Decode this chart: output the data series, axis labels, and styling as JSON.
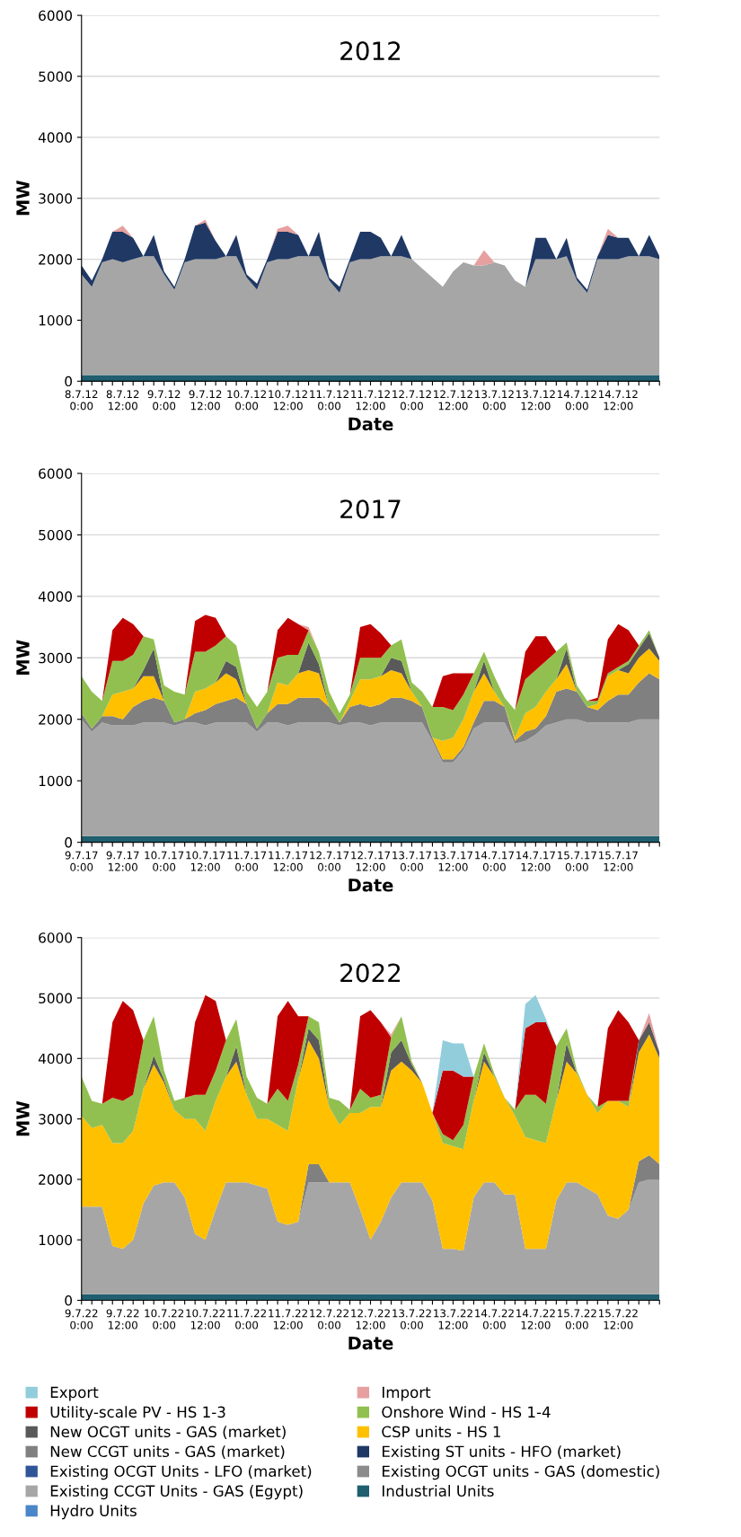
{
  "chart_data": [
    {
      "type": "area",
      "stacked": true,
      "title": "2012",
      "xlabel": "Date",
      "ylabel": "MW",
      "ylim": [
        0,
        6000
      ],
      "yticks": [
        0,
        1000,
        2000,
        3000,
        4000,
        5000,
        6000
      ],
      "grid": "y",
      "legend": false,
      "categories": [
        "8.7.12\n0:00",
        null,
        null,
        null,
        "8.7.12\n12:00",
        null,
        null,
        null,
        "9.7.12\n0:00",
        null,
        null,
        null,
        "9.7.12\n12:00",
        null,
        null,
        null,
        "10.7.12\n0:00",
        null,
        null,
        null,
        "10.7.12\n12:00",
        null,
        null,
        null,
        "11.7.12\n0:00",
        null,
        null,
        null,
        "11.7.12\n12:00",
        null,
        null,
        null,
        "12.7.12\n0:00",
        null,
        null,
        null,
        "12.7.12\n12:00",
        null,
        null,
        null,
        "13.7.12\n0:00",
        null,
        null,
        null,
        "13.7.12\n12:00",
        null,
        null,
        null,
        "14.7.12\n0:00",
        null,
        null,
        null,
        "14.7.12\n12:00",
        null,
        null,
        null,
        null
      ],
      "series": [
        {
          "color": "#1f5f6f",
          "values": [
            100,
            100,
            100,
            100,
            100,
            100,
            100,
            100,
            100,
            100,
            100,
            100,
            100,
            100,
            100,
            100,
            100,
            100,
            100,
            100,
            100,
            100,
            100,
            100,
            100,
            100,
            100,
            100,
            100,
            100,
            100,
            100,
            100,
            100,
            100,
            100,
            100,
            100,
            100,
            100,
            100,
            100,
            100,
            100,
            100,
            100,
            100,
            100,
            100,
            100,
            100,
            100,
            100,
            100,
            100,
            100,
            100
          ]
        },
        {
          "color": "#a6a6a6",
          "values": [
            1650,
            1450,
            1850,
            1900,
            1850,
            1900,
            1950,
            1950,
            1650,
            1400,
            1850,
            1900,
            1900,
            1900,
            1950,
            1950,
            1600,
            1400,
            1850,
            1900,
            1900,
            1950,
            1950,
            1950,
            1550,
            1350,
            1850,
            1900,
            1900,
            1950,
            1950,
            1950,
            1900,
            1750,
            1600,
            1450,
            1700,
            1850,
            1800,
            1800,
            1850,
            1800,
            1550,
            1450,
            1900,
            1900,
            1900,
            1950,
            1550,
            1350,
            1900,
            1900,
            1900,
            1950,
            1950,
            1950,
            1900
          ]
        },
        {
          "color": "#1f3864",
          "values": [
            150,
            100,
            50,
            450,
            500,
            350,
            0,
            350,
            50,
            50,
            50,
            550,
            600,
            300,
            0,
            350,
            50,
            100,
            50,
            450,
            450,
            350,
            0,
            400,
            50,
            100,
            50,
            450,
            450,
            300,
            0,
            350,
            0,
            null,
            null,
            null,
            null,
            null,
            null,
            null,
            null,
            null,
            null,
            0,
            350,
            350,
            0,
            300,
            50,
            50,
            50,
            400,
            350,
            300,
            0,
            350,
            50
          ]
        },
        {
          "color": "#e6a0a0",
          "values": [
            null,
            null,
            null,
            0,
            100,
            0,
            null,
            null,
            null,
            null,
            null,
            0,
            50,
            0,
            null,
            null,
            null,
            null,
            0,
            50,
            100,
            0,
            null,
            null,
            null,
            null,
            null,
            null,
            null,
            null,
            null,
            null,
            null,
            null,
            null,
            null,
            null,
            null,
            0,
            250,
            0,
            null,
            null,
            null,
            null,
            null,
            null,
            null,
            null,
            null,
            0,
            100,
            0,
            null,
            null,
            null,
            null
          ]
        }
      ]
    },
    {
      "type": "area",
      "stacked": true,
      "title": "2017",
      "xlabel": "Date",
      "ylabel": "MW",
      "ylim": [
        0,
        6000
      ],
      "yticks": [
        0,
        1000,
        2000,
        3000,
        4000,
        5000,
        6000
      ],
      "grid": "y",
      "legend": false,
      "categories": [
        "9.7.17\n0:00",
        null,
        null,
        null,
        "9.7.17\n12:00",
        null,
        null,
        null,
        "10.7.17\n0:00",
        null,
        null,
        null,
        "10.7.17\n12:00",
        null,
        null,
        null,
        "11.7.17\n0:00",
        null,
        null,
        null,
        "11.7.17\n12:00",
        null,
        null,
        null,
        "12.7.17\n0:00",
        null,
        null,
        null,
        "12.7.17\n12:00",
        null,
        null,
        null,
        "13.7.17\n0:00",
        null,
        null,
        null,
        "13.7.17\n12:00",
        null,
        null,
        null,
        "14.7.17\n0:00",
        null,
        null,
        null,
        "14.7.17\n12:00",
        null,
        null,
        null,
        "15.7.17\n0:00",
        null,
        null,
        null,
        "15.7.17\n12:00",
        null,
        null,
        null,
        null
      ],
      "series": [
        {
          "color": "#1f5f6f",
          "values": [
            100,
            100,
            100,
            100,
            100,
            100,
            100,
            100,
            100,
            100,
            100,
            100,
            100,
            100,
            100,
            100,
            100,
            100,
            100,
            100,
            100,
            100,
            100,
            100,
            100,
            100,
            100,
            100,
            100,
            100,
            100,
            100,
            100,
            100,
            100,
            100,
            100,
            100,
            100,
            100,
            100,
            100,
            100,
            100,
            100,
            100,
            100,
            100,
            100,
            100,
            100,
            100,
            100,
            100,
            100,
            100,
            100
          ]
        },
        {
          "color": "#a6a6a6",
          "values": [
            1900,
            1700,
            1850,
            1800,
            1800,
            1800,
            1850,
            1850,
            1850,
            1800,
            1850,
            1850,
            1800,
            1850,
            1850,
            1850,
            1850,
            1700,
            1850,
            1850,
            1800,
            1850,
            1850,
            1850,
            1850,
            1800,
            1850,
            1850,
            1800,
            1850,
            1850,
            1850,
            1850,
            1850,
            1550,
            1200,
            1200,
            1400,
            1750,
            1850,
            1850,
            1850,
            1500,
            1550,
            1650,
            1800,
            1850,
            1900,
            1900,
            1850,
            1850,
            1850,
            1850,
            1850,
            1900,
            1900,
            1900
          ]
        },
        {
          "color": "#808080",
          "values": [
            100,
            50,
            100,
            150,
            100,
            300,
            350,
            400,
            350,
            50,
            50,
            150,
            250,
            300,
            350,
            400,
            300,
            50,
            150,
            300,
            350,
            400,
            400,
            400,
            250,
            50,
            250,
            300,
            300,
            300,
            400,
            400,
            350,
            250,
            50,
            50,
            50,
            50,
            100,
            350,
            350,
            250,
            50,
            150,
            100,
            150,
            500,
            500,
            450,
            250,
            200,
            350,
            450,
            450,
            600,
            750,
            650
          ]
        },
        {
          "color": "#ffc000",
          "values": [
            0,
            0,
            0,
            350,
            450,
            300,
            400,
            350,
            0,
            0,
            0,
            350,
            350,
            350,
            450,
            300,
            0,
            0,
            0,
            350,
            300,
            400,
            450,
            400,
            0,
            0,
            100,
            400,
            450,
            450,
            450,
            400,
            150,
            0,
            0,
            300,
            350,
            450,
            500,
            450,
            150,
            0,
            50,
            300,
            350,
            400,
            200,
            400,
            0,
            0,
            100,
            400,
            400,
            350,
            400,
            400,
            300
          ]
        },
        {
          "color": "#595959",
          "values": [
            null,
            null,
            null,
            null,
            null,
            0,
            100,
            450,
            0,
            null,
            null,
            null,
            null,
            0,
            200,
            200,
            0,
            null,
            null,
            null,
            null,
            0,
            450,
            150,
            0,
            null,
            null,
            null,
            null,
            0,
            200,
            200,
            0,
            null,
            null,
            null,
            null,
            null,
            0,
            200,
            0,
            null,
            null,
            null,
            null,
            null,
            0,
            250,
            0,
            null,
            null,
            null,
            0,
            150,
            150,
            250,
            50
          ]
        },
        {
          "color": "#92c050",
          "values": [
            600,
            600,
            250,
            550,
            500,
            550,
            550,
            150,
            250,
            500,
            400,
            650,
            600,
            600,
            400,
            350,
            200,
            350,
            350,
            400,
            500,
            300,
            200,
            200,
            250,
            150,
            100,
            350,
            350,
            300,
            200,
            350,
            150,
            250,
            500,
            550,
            450,
            400,
            300,
            150,
            250,
            150,
            450,
            550,
            600,
            500,
            450,
            100,
            100,
            100,
            50,
            50,
            50,
            50,
            50,
            50,
            0
          ]
        },
        {
          "color": "#c00000",
          "values": [
            null,
            null,
            0,
            500,
            700,
            500,
            0,
            null,
            null,
            null,
            0,
            500,
            600,
            450,
            0,
            null,
            null,
            null,
            0,
            450,
            600,
            500,
            0,
            null,
            null,
            null,
            0,
            500,
            550,
            400,
            0,
            null,
            null,
            null,
            0,
            500,
            600,
            350,
            0,
            null,
            null,
            null,
            0,
            450,
            550,
            400,
            0,
            null,
            null,
            0,
            50,
            550,
            700,
            500,
            0,
            null,
            null
          ]
        },
        {
          "color": "#e6a0a0",
          "values": [
            null,
            null,
            null,
            null,
            null,
            null,
            null,
            null,
            null,
            null,
            null,
            null,
            null,
            null,
            null,
            null,
            null,
            null,
            null,
            null,
            null,
            0,
            50,
            0,
            null,
            null,
            null,
            null,
            null,
            null,
            null,
            null,
            null,
            null,
            null,
            null,
            null,
            null,
            null,
            null,
            null,
            null,
            null,
            null,
            null,
            null,
            null,
            null,
            null,
            null,
            null,
            null,
            null,
            null,
            null,
            null,
            null
          ]
        }
      ]
    },
    {
      "type": "area",
      "stacked": true,
      "title": "2022",
      "xlabel": "Date",
      "ylabel": "MW",
      "ylim": [
        0,
        6000
      ],
      "yticks": [
        0,
        1000,
        2000,
        3000,
        4000,
        5000,
        6000
      ],
      "grid": "y",
      "legend": "bottom",
      "categories": [
        "9.7.22\n0:00",
        null,
        null,
        null,
        "9.7.22\n12:00",
        null,
        null,
        null,
        "10.7.22\n0:00",
        null,
        null,
        null,
        "10.7.22\n12:00",
        null,
        null,
        null,
        "11.7.22\n0:00",
        null,
        null,
        null,
        "11.7.22\n12:00",
        null,
        null,
        null,
        "12.7.22\n0:00",
        null,
        null,
        null,
        "12.7.22\n12:00",
        null,
        null,
        null,
        "13.7.22\n0:00",
        null,
        null,
        null,
        "13.7.22\n12:00",
        null,
        null,
        null,
        "14.7.22\n0:00",
        null,
        null,
        null,
        "14.7.22\n12:00",
        null,
        null,
        null,
        "15.7.22\n0:00",
        null,
        null,
        null,
        "15.7.22\n12:00",
        null,
        null,
        null,
        null
      ],
      "series": [
        {
          "name": "Hydro Units",
          "color": "#4a86c8",
          "values": [
            null,
            null,
            null,
            null,
            null,
            null,
            null,
            null,
            null,
            null,
            null,
            null,
            null,
            null,
            null,
            null,
            null,
            null,
            null,
            null,
            null,
            null,
            null,
            null,
            null,
            null,
            null,
            null,
            null,
            null,
            null,
            null,
            null,
            null,
            null,
            null,
            null,
            null,
            null,
            null,
            null,
            null,
            null,
            null,
            null,
            null,
            null,
            null,
            null,
            null,
            null,
            null,
            null,
            null,
            null,
            null,
            null
          ]
        },
        {
          "name": "Industrial Units",
          "color": "#1f5f6f",
          "values": [
            100,
            100,
            100,
            100,
            100,
            100,
            100,
            100,
            100,
            100,
            100,
            100,
            100,
            100,
            100,
            100,
            100,
            100,
            100,
            100,
            100,
            100,
            100,
            100,
            100,
            100,
            100,
            100,
            100,
            100,
            100,
            100,
            100,
            100,
            100,
            100,
            100,
            100,
            100,
            100,
            100,
            100,
            100,
            100,
            100,
            100,
            100,
            100,
            100,
            100,
            100,
            100,
            100,
            100,
            100,
            100,
            100
          ]
        },
        {
          "name": "Existing CCGT Units - GAS (Egypt)",
          "color": "#a6a6a6",
          "values": [
            1450,
            1450,
            1450,
            800,
            750,
            900,
            1500,
            1800,
            1850,
            1850,
            1600,
            1000,
            900,
            1400,
            1850,
            1850,
            1850,
            1800,
            1750,
            1200,
            1150,
            1200,
            1850,
            1850,
            1850,
            1850,
            1850,
            1400,
            900,
            1200,
            1600,
            1850,
            1850,
            1850,
            1550,
            750,
            750,
            720,
            1600,
            1850,
            1850,
            1650,
            1650,
            750,
            750,
            750,
            1550,
            1850,
            1850,
            1750,
            1650,
            1300,
            1250,
            1400,
            1850,
            1900,
            1900
          ]
        },
        {
          "name": "Existing OCGT units - GAS (domestic)",
          "color": "#8c8c8c",
          "values": [
            null,
            null,
            null,
            null,
            null,
            null,
            null,
            null,
            null,
            null,
            null,
            null,
            null,
            null,
            null,
            null,
            null,
            null,
            null,
            null,
            null,
            null,
            null,
            null,
            null,
            null,
            null,
            null,
            null,
            null,
            null,
            null,
            null,
            null,
            null,
            null,
            null,
            null,
            null,
            null,
            null,
            null,
            null,
            null,
            null,
            null,
            null,
            null,
            null,
            null,
            null,
            null,
            null,
            null,
            null,
            null,
            null
          ]
        },
        {
          "name": "Existing OCGT Units - LFO (market)",
          "color": "#2f5597",
          "values": [
            null,
            null,
            null,
            null,
            null,
            null,
            null,
            null,
            null,
            null,
            null,
            null,
            null,
            null,
            null,
            null,
            null,
            null,
            null,
            null,
            null,
            null,
            null,
            null,
            null,
            null,
            null,
            null,
            null,
            null,
            null,
            null,
            null,
            null,
            null,
            null,
            null,
            null,
            null,
            null,
            null,
            null,
            null,
            null,
            null,
            null,
            null,
            null,
            null,
            null,
            null,
            null,
            null,
            null,
            null,
            null,
            null
          ]
        },
        {
          "name": "Existing ST units - HFO (market)",
          "color": "#1f3864",
          "values": [
            null,
            null,
            null,
            null,
            null,
            null,
            null,
            null,
            null,
            null,
            null,
            null,
            null,
            null,
            null,
            null,
            null,
            null,
            null,
            null,
            null,
            null,
            null,
            null,
            null,
            null,
            null,
            null,
            null,
            null,
            null,
            null,
            null,
            null,
            null,
            null,
            null,
            null,
            null,
            null,
            null,
            null,
            null,
            null,
            null,
            null,
            null,
            null,
            null,
            null,
            null,
            null,
            null,
            null,
            null,
            null,
            null
          ]
        },
        {
          "name": "New CCGT units - GAS (market)",
          "color": "#808080",
          "values": [
            null,
            null,
            null,
            null,
            null,
            null,
            null,
            null,
            null,
            null,
            null,
            null,
            null,
            null,
            null,
            null,
            null,
            null,
            null,
            null,
            null,
            0,
            300,
            300,
            0,
            null,
            null,
            null,
            null,
            null,
            null,
            null,
            null,
            null,
            null,
            null,
            null,
            null,
            null,
            null,
            null,
            null,
            null,
            null,
            null,
            null,
            null,
            null,
            null,
            null,
            null,
            null,
            null,
            0,
            350,
            400,
            250
          ]
        },
        {
          "name": "CSP units - HS 1",
          "color": "#ffc000",
          "values": [
            1500,
            1300,
            1350,
            1700,
            1750,
            1800,
            1900,
            2000,
            1650,
            1200,
            1300,
            1900,
            1800,
            1800,
            1750,
            2000,
            1450,
            1100,
            1150,
            1600,
            1550,
            2350,
            2050,
            1750,
            1250,
            950,
            1150,
            1600,
            2200,
            1900,
            2100,
            2000,
            1850,
            1650,
            1450,
            1750,
            1700,
            1680,
            1600,
            2000,
            1750,
            1600,
            1300,
            1850,
            1800,
            1750,
            1650,
            2000,
            1800,
            1550,
            1350,
            1900,
            1950,
            1700,
            1800,
            2000,
            1750
          ]
        },
        {
          "name": "New OCGT units - GAS (market)",
          "color": "#595959",
          "values": [
            null,
            null,
            null,
            null,
            null,
            null,
            0,
            150,
            50,
            0,
            null,
            null,
            null,
            null,
            0,
            250,
            0,
            null,
            null,
            null,
            null,
            0,
            200,
            300,
            0,
            null,
            null,
            null,
            null,
            0,
            300,
            350,
            100,
            0,
            null,
            null,
            null,
            null,
            0,
            150,
            0,
            null,
            null,
            null,
            null,
            null,
            0,
            300,
            0,
            null,
            null,
            null,
            null,
            0,
            200,
            200,
            100
          ]
        },
        {
          "name": "Onshore Wind - HS 1-4",
          "color": "#92c050",
          "values": [
            650,
            450,
            350,
            750,
            700,
            600,
            800,
            650,
            150,
            150,
            350,
            400,
            600,
            500,
            600,
            450,
            300,
            350,
            250,
            600,
            500,
            250,
            200,
            300,
            150,
            400,
            50,
            400,
            150,
            200,
            250,
            400,
            50,
            0,
            0,
            150,
            100,
            400,
            400,
            150,
            50,
            0,
            100,
            700,
            750,
            650,
            900,
            250,
            50,
            0,
            100,
            0,
            0,
            100,
            0,
            0,
            0
          ]
        },
        {
          "name": "Utility-scale PV - HS 1-3",
          "color": "#c00000",
          "values": [
            null,
            null,
            0,
            1250,
            1650,
            1400,
            0,
            null,
            null,
            null,
            0,
            1200,
            1650,
            1150,
            0,
            null,
            null,
            null,
            0,
            1200,
            1650,
            800,
            0,
            null,
            null,
            null,
            0,
            1200,
            1450,
            1200,
            0,
            null,
            null,
            null,
            0,
            1050,
            1150,
            800,
            0,
            null,
            null,
            null,
            0,
            1100,
            1200,
            1350,
            0,
            null,
            null,
            null,
            0,
            1200,
            1500,
            1300,
            0,
            null,
            null
          ]
        },
        {
          "name": "Import",
          "color": "#e6a0a0",
          "values": [
            null,
            null,
            null,
            null,
            null,
            null,
            null,
            null,
            null,
            null,
            null,
            null,
            null,
            null,
            null,
            null,
            null,
            null,
            null,
            null,
            null,
            null,
            null,
            null,
            null,
            null,
            null,
            null,
            null,
            0,
            50,
            0,
            null,
            null,
            null,
            null,
            null,
            null,
            null,
            null,
            null,
            null,
            null,
            null,
            null,
            null,
            null,
            null,
            null,
            null,
            null,
            null,
            null,
            null,
            0,
            150,
            0
          ]
        },
        {
          "name": "Export",
          "color": "#92cddc",
          "values": [
            null,
            null,
            null,
            null,
            null,
            null,
            null,
            null,
            null,
            null,
            null,
            null,
            null,
            null,
            null,
            null,
            null,
            null,
            null,
            null,
            null,
            null,
            null,
            null,
            null,
            null,
            null,
            null,
            null,
            null,
            null,
            null,
            null,
            null,
            0,
            500,
            450,
            550,
            0,
            null,
            null,
            null,
            0,
            400,
            450,
            50,
            0,
            null,
            null,
            null,
            null,
            null,
            null,
            null,
            null,
            null,
            null
          ]
        }
      ]
    }
  ]
}
